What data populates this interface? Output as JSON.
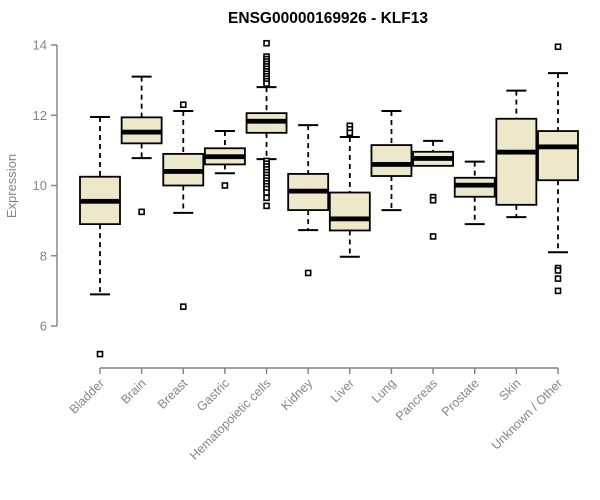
{
  "title": "ENSG00000169926 - KLF13",
  "colors": {
    "box_fill": "#EDE7CB",
    "box_border": "#000000",
    "median": "#000000",
    "whisker": "#000000",
    "outlier": "#000000",
    "axis_line": "#808080",
    "axis_text": "#858585",
    "title_text": "#000000",
    "background": "#ffffff"
  },
  "chart_data": {
    "type": "boxplot",
    "title": "ENSG00000169926 - KLF13",
    "xlabel": "",
    "ylabel": "Expression",
    "ylim": [
      5,
      14.3
    ],
    "yticks": [
      6,
      8,
      10,
      12,
      14
    ],
    "grid": false,
    "legend": false,
    "categories": [
      "Bladder",
      "Brain",
      "Breast",
      "Gastric",
      "Hematopoietic cells",
      "Kidney",
      "Liver",
      "Lung",
      "Pancreas",
      "Prostate",
      "Skin",
      "Unknown / Other"
    ],
    "series": [
      {
        "name": "Bladder",
        "whisker_low": 6.9,
        "q1": 8.9,
        "median": 9.55,
        "q3": 10.25,
        "whisker_high": 11.95,
        "outliers": [
          5.2
        ]
      },
      {
        "name": "Brain",
        "whisker_low": 10.78,
        "q1": 11.2,
        "median": 11.52,
        "q3": 11.94,
        "whisker_high": 13.1,
        "outliers": [
          9.25
        ]
      },
      {
        "name": "Breast",
        "whisker_low": 9.22,
        "q1": 10.0,
        "median": 10.4,
        "q3": 10.9,
        "whisker_high": 12.12,
        "outliers": [
          12.3,
          6.55
        ]
      },
      {
        "name": "Gastric",
        "whisker_low": 10.35,
        "q1": 10.6,
        "median": 10.82,
        "q3": 11.06,
        "whisker_high": 11.55,
        "outliers": [
          10.0
        ]
      },
      {
        "name": "Hematopoietic cells",
        "whisker_low": 10.75,
        "q1": 11.5,
        "median": 11.83,
        "q3": 12.06,
        "whisker_high": 12.8,
        "outliers": [
          14.05,
          13.67,
          13.6,
          13.53,
          13.46,
          13.39,
          13.32,
          13.25,
          13.18,
          13.11,
          13.04,
          12.97,
          12.9,
          10.7,
          10.62,
          10.54,
          10.46,
          10.38,
          10.3,
          10.22,
          10.14,
          10.06,
          9.98,
          9.9,
          9.8,
          9.65,
          9.42
        ]
      },
      {
        "name": "Kidney",
        "whisker_low": 8.73,
        "q1": 9.3,
        "median": 9.84,
        "q3": 10.33,
        "whisker_high": 11.72,
        "outliers": [
          7.51
        ]
      },
      {
        "name": "Liver",
        "whisker_low": 7.97,
        "q1": 8.72,
        "median": 9.05,
        "q3": 9.8,
        "whisker_high": 11.38,
        "outliers": [
          11.7,
          11.6,
          11.5
        ]
      },
      {
        "name": "Lung",
        "whisker_low": 9.3,
        "q1": 10.27,
        "median": 10.6,
        "q3": 11.15,
        "whisker_high": 12.12,
        "outliers": []
      },
      {
        "name": "Pancreas",
        "whisker_low": 10.56,
        "q1": 10.56,
        "median": 10.77,
        "q3": 10.96,
        "whisker_high": 11.27,
        "outliers": [
          9.67,
          9.58,
          8.55
        ]
      },
      {
        "name": "Prostate",
        "whisker_low": 8.9,
        "q1": 9.68,
        "median": 10.01,
        "q3": 10.22,
        "whisker_high": 10.68,
        "outliers": []
      },
      {
        "name": "Skin",
        "whisker_low": 9.1,
        "q1": 9.45,
        "median": 10.95,
        "q3": 11.9,
        "whisker_high": 12.7,
        "outliers": []
      },
      {
        "name": "Unknown / Other",
        "whisker_low": 8.1,
        "q1": 10.15,
        "median": 11.1,
        "q3": 11.55,
        "whisker_high": 13.2,
        "outliers": [
          13.95,
          7.65,
          7.58,
          7.35,
          7.0
        ]
      }
    ]
  }
}
